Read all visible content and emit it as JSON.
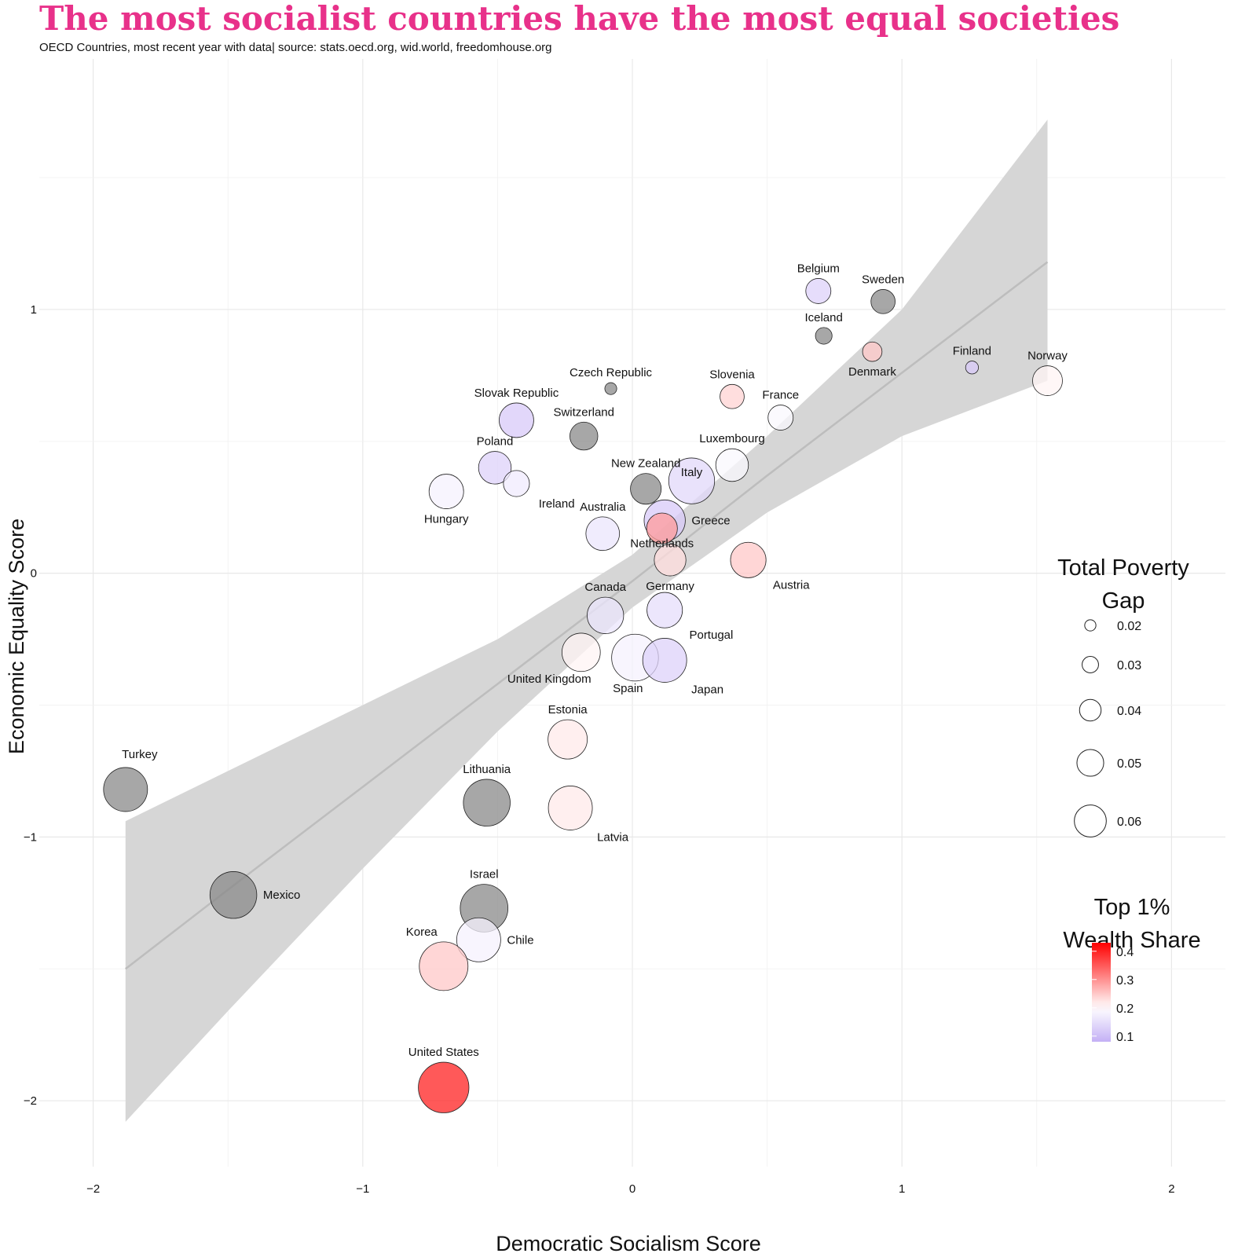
{
  "chart_data": {
    "type": "scatter",
    "title": "The most socialist countries have the most equal societies",
    "subtitle": "OECD Countries, most recent year with data| source: stats.oecd.org, wid.world, freedomhouse.org",
    "xlabel": "Democratic Socialism Score",
    "ylabel": "Economic Equality Score",
    "xlim": [
      -2.2,
      2.2
    ],
    "ylim": [
      -2.25,
      1.95
    ],
    "x_ticks": [
      -2,
      -1,
      0,
      1,
      2
    ],
    "y_ticks": [
      -2,
      -1,
      0,
      1
    ],
    "x_tick_labels": [
      "−2",
      "−1",
      "0",
      "1",
      "2"
    ],
    "y_tick_labels": [
      "−2",
      "−1",
      "0",
      "1"
    ],
    "grid": true,
    "regression": {
      "x": [
        -1.88,
        -1.5,
        -1.0,
        -0.5,
        0.0,
        0.5,
        1.0,
        1.54
      ],
      "fit": [
        -1.5,
        -1.2,
        -0.81,
        -0.42,
        -0.03,
        0.37,
        0.76,
        1.18
      ],
      "lower": [
        -2.08,
        -1.66,
        -1.12,
        -0.6,
        -0.13,
        0.23,
        0.52,
        0.73
      ],
      "upper": [
        -0.94,
        -0.75,
        -0.5,
        -0.25,
        0.07,
        0.52,
        1.0,
        1.72
      ]
    },
    "size_legend": {
      "title": [
        "Total Poverty",
        "Gap"
      ],
      "values": [
        0.02,
        0.03,
        0.04,
        0.05,
        0.06
      ],
      "labels": [
        "0.02",
        "0.03",
        "0.04",
        "0.05",
        "0.06"
      ]
    },
    "color_legend": {
      "title": [
        "Top 1%",
        "Wealth Share"
      ],
      "min": 0.08,
      "max": 0.43,
      "ticks": [
        0.4,
        0.3,
        0.2,
        0.1
      ],
      "tick_labels": [
        "0.4",
        "0.3",
        "0.2",
        "0.1"
      ],
      "low_color": "#c4b0f5",
      "mid_color": "#ffffff",
      "high_color": "#ff0000",
      "na_color": "#8a8a8a"
    },
    "points": [
      {
        "name": "Belgium",
        "x": 0.69,
        "y": 1.07,
        "gap": 0.025,
        "wealth": 0.13
      },
      {
        "name": "Sweden",
        "x": 0.93,
        "y": 1.03,
        "gap": 0.024,
        "wealth": null
      },
      {
        "name": "Iceland",
        "x": 0.71,
        "y": 0.9,
        "gap": 0.016,
        "wealth": null
      },
      {
        "name": "Denmark",
        "x": 0.89,
        "y": 0.84,
        "gap": 0.019,
        "wealth": 0.25
      },
      {
        "name": "Finland",
        "x": 1.26,
        "y": 0.78,
        "gap": 0.012,
        "wealth": 0.12
      },
      {
        "name": "Norway",
        "x": 1.54,
        "y": 0.73,
        "gap": 0.03,
        "wealth": 0.21
      },
      {
        "name": "Czech Republic",
        "x": -0.08,
        "y": 0.7,
        "gap": 0.011,
        "wealth": null
      },
      {
        "name": "Slovenia",
        "x": 0.37,
        "y": 0.67,
        "gap": 0.024,
        "wealth": 0.24
      },
      {
        "name": "France",
        "x": 0.55,
        "y": 0.59,
        "gap": 0.025,
        "wealth": 0.19
      },
      {
        "name": "Slovak Republic",
        "x": -0.43,
        "y": 0.58,
        "gap": 0.035,
        "wealth": 0.12
      },
      {
        "name": "Switzerland",
        "x": -0.18,
        "y": 0.52,
        "gap": 0.028,
        "wealth": null
      },
      {
        "name": "Poland",
        "x": -0.51,
        "y": 0.4,
        "gap": 0.033,
        "wealth": 0.13
      },
      {
        "name": "Luxembourg",
        "x": 0.37,
        "y": 0.41,
        "gap": 0.033,
        "wealth": 0.19
      },
      {
        "name": "Ireland",
        "x": -0.43,
        "y": 0.34,
        "gap": 0.026,
        "wealth": 0.17
      },
      {
        "name": "Hungary",
        "x": -0.69,
        "y": 0.31,
        "gap": 0.035,
        "wealth": 0.18
      },
      {
        "name": "New Zealand",
        "x": 0.05,
        "y": 0.32,
        "gap": 0.031,
        "wealth": null
      },
      {
        "name": "Italy",
        "x": 0.22,
        "y": 0.35,
        "gap": 0.047,
        "wealth": 0.14
      },
      {
        "name": "Greece",
        "x": 0.12,
        "y": 0.2,
        "gap": 0.042,
        "wealth": 0.12
      },
      {
        "name": "Netherlands",
        "x": 0.11,
        "y": 0.17,
        "gap": 0.031,
        "wealth": 0.29
      },
      {
        "name": "Australia",
        "x": -0.11,
        "y": 0.15,
        "gap": 0.034,
        "wealth": 0.16
      },
      {
        "name": "Germany",
        "x": 0.14,
        "y": 0.05,
        "gap": 0.032,
        "wealth": 0.23
      },
      {
        "name": "Austria",
        "x": 0.43,
        "y": 0.05,
        "gap": 0.036,
        "wealth": 0.25
      },
      {
        "name": "Canada",
        "x": -0.1,
        "y": -0.16,
        "gap": 0.037,
        "wealth": 0.16
      },
      {
        "name": "Portugal",
        "x": 0.12,
        "y": -0.14,
        "gap": 0.036,
        "wealth": 0.15
      },
      {
        "name": "United Kingdom",
        "x": -0.19,
        "y": -0.3,
        "gap": 0.039,
        "wealth": 0.21
      },
      {
        "name": "Spain",
        "x": 0.01,
        "y": -0.32,
        "gap": 0.048,
        "wealth": 0.18
      },
      {
        "name": "Japan",
        "x": 0.12,
        "y": -0.33,
        "gap": 0.045,
        "wealth": 0.13
      },
      {
        "name": "Estonia",
        "x": -0.24,
        "y": -0.63,
        "gap": 0.04,
        "wealth": 0.22
      },
      {
        "name": "Turkey",
        "x": -1.88,
        "y": -0.82,
        "gap": 0.045,
        "wealth": null
      },
      {
        "name": "Lithuania",
        "x": -0.54,
        "y": -0.87,
        "gap": 0.048,
        "wealth": null
      },
      {
        "name": "Latvia",
        "x": -0.23,
        "y": -0.89,
        "gap": 0.045,
        "wealth": 0.22
      },
      {
        "name": "Mexico",
        "x": -1.48,
        "y": -1.22,
        "gap": 0.048,
        "wealth": null
      },
      {
        "name": "Israel",
        "x": -0.55,
        "y": -1.27,
        "gap": 0.049,
        "wealth": null
      },
      {
        "name": "Chile",
        "x": -0.57,
        "y": -1.39,
        "gap": 0.045,
        "wealth": 0.18
      },
      {
        "name": "Korea",
        "x": -0.7,
        "y": -1.49,
        "gap": 0.05,
        "wealth": 0.25
      },
      {
        "name": "United States",
        "x": -0.7,
        "y": -1.95,
        "gap": 0.052,
        "wealth": 0.4
      }
    ]
  }
}
